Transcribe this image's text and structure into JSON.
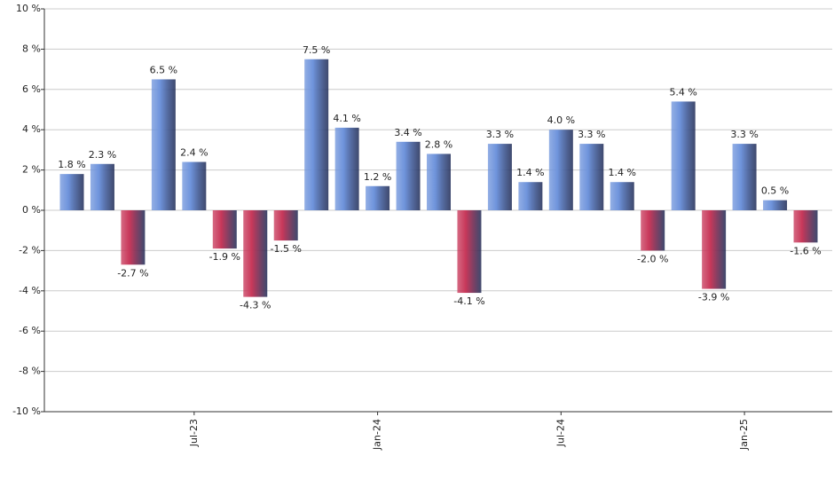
{
  "chart_data": {
    "type": "bar",
    "categories": [
      null,
      null,
      null,
      null,
      "Jul-23",
      null,
      null,
      null,
      null,
      null,
      "Jan-24",
      null,
      null,
      null,
      null,
      null,
      "Jul-24",
      null,
      null,
      null,
      null,
      null,
      "Jan-25",
      null,
      null
    ],
    "values": [
      1.8,
      2.3,
      -2.7,
      6.5,
      2.4,
      -1.9,
      -4.3,
      -1.5,
      7.5,
      4.1,
      1.2,
      3.4,
      2.8,
      -4.1,
      3.3,
      1.4,
      4.0,
      3.3,
      1.4,
      -2.0,
      5.4,
      -3.9,
      3.3,
      0.5,
      -1.6
    ],
    "value_labels": [
      "1.8 %",
      "2.3 %",
      "-2.7 %",
      "6.5 %",
      "2.4 %",
      "-1.9 %",
      "-4.3 %",
      "-1.5 %",
      "7.5 %",
      "4.1 %",
      "1.2 %",
      "3.4 %",
      "2.8 %",
      "-4.1 %",
      "3.3 %",
      "1.4 %",
      "4.0 %",
      "3.3 %",
      "1.4 %",
      "-2.0 %",
      "5.4 %",
      "-3.9 %",
      "3.3 %",
      "0.5 %",
      "-1.6 %"
    ],
    "positive_color": "#6f94dc",
    "negative_color": "#c8385a",
    "ylim": [
      -10,
      10
    ],
    "yticks": [
      {
        "value": -10,
        "label": "-10 %"
      },
      {
        "value": -8,
        "label": "-8 %"
      },
      {
        "value": -6,
        "label": "-6 %"
      },
      {
        "value": -4,
        "label": "-4 %"
      },
      {
        "value": -2,
        "label": "-2 %"
      },
      {
        "value": 0,
        "label": "0 %"
      },
      {
        "value": 2,
        "label": "2 %"
      },
      {
        "value": 4,
        "label": "4 %"
      },
      {
        "value": 6,
        "label": "6 %"
      },
      {
        "value": 8,
        "label": "8 %"
      },
      {
        "value": 10,
        "label": "10 %"
      }
    ],
    "grid": true
  }
}
